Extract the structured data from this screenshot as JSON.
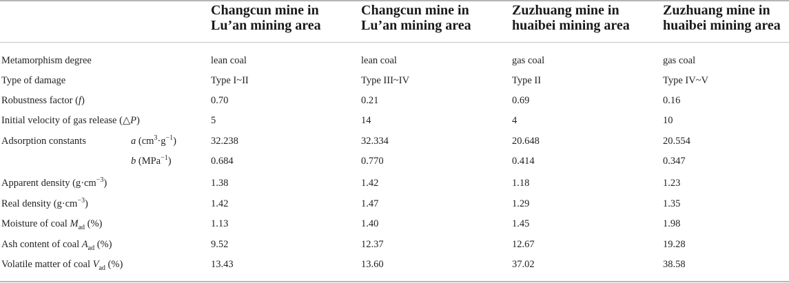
{
  "table": {
    "headers": [
      {
        "line1": "Changcun mine in",
        "line2": "Lu’an mining area"
      },
      {
        "line1": "Changcun mine in",
        "line2": "Lu’an mining area"
      },
      {
        "line1": "Zuzhuang mine in",
        "line2": "huaibei mining area"
      },
      {
        "line1": "Zuzhuang mine in",
        "line2": "huaibei mining area"
      }
    ],
    "rows": {
      "metamorphism": {
        "label": "Metamorphism degree",
        "values": [
          "lean coal",
          "lean coal",
          "gas coal",
          "gas coal"
        ]
      },
      "damage": {
        "label": "Type of damage",
        "values": [
          "Type I~II",
          "Type III~IV",
          "Type II",
          "Type IV~V"
        ]
      },
      "robustness": {
        "label_a": "Robustness factor (",
        "label_var": "f",
        "label_b": ")",
        "values": [
          "0.70",
          "0.21",
          "0.69",
          "0.16"
        ]
      },
      "velocity": {
        "label_a": "Initial velocity of gas release (△",
        "label_var": "P",
        "label_b": ")",
        "values": [
          "5",
          "14",
          "4",
          "10"
        ]
      },
      "adsorption_a": {
        "label": "Adsorption constants",
        "sub_var": "a",
        "sub_unit_a": "(cm",
        "sub_sup1": "3",
        "sub_unit_b": "·g",
        "sub_sup2": "−1",
        "sub_unit_c": ")",
        "values": [
          "32.238",
          "32.334",
          "20.648",
          "20.554"
        ]
      },
      "adsorption_b": {
        "sub_var": "b",
        "sub_unit_a": "(MPa",
        "sub_sup": "−1",
        "sub_unit_b": ")",
        "values": [
          "0.684",
          "0.770",
          "0.414",
          "0.347"
        ]
      },
      "apparent_density": {
        "label_a": "Apparent density (g·cm",
        "label_sup": "−3",
        "label_b": ")",
        "values": [
          "1.38",
          "1.42",
          "1.18",
          "1.23"
        ]
      },
      "real_density": {
        "label_a": "Real density (g·cm",
        "label_sup": "−3",
        "label_b": ")",
        "values": [
          "1.42",
          "1.47",
          "1.29",
          "1.35"
        ]
      },
      "moisture": {
        "label_a": "Moisture of coal ",
        "label_var": "M",
        "label_sub": "ad",
        "label_b": " (%)",
        "values": [
          "1.13",
          "1.40",
          "1.45",
          "1.98"
        ]
      },
      "ash": {
        "label_a": "Ash content of coal ",
        "label_var": "A",
        "label_sub": "ad",
        "label_b": " (%)",
        "values": [
          "9.52",
          "12.37",
          "12.67",
          "19.28"
        ]
      },
      "volatile": {
        "label_a": "Volatile matter of coal ",
        "label_var": "V",
        "label_sub": "ad",
        "label_b": " (%)",
        "values": [
          "13.43",
          "13.60",
          "37.02",
          "38.58"
        ]
      }
    }
  }
}
